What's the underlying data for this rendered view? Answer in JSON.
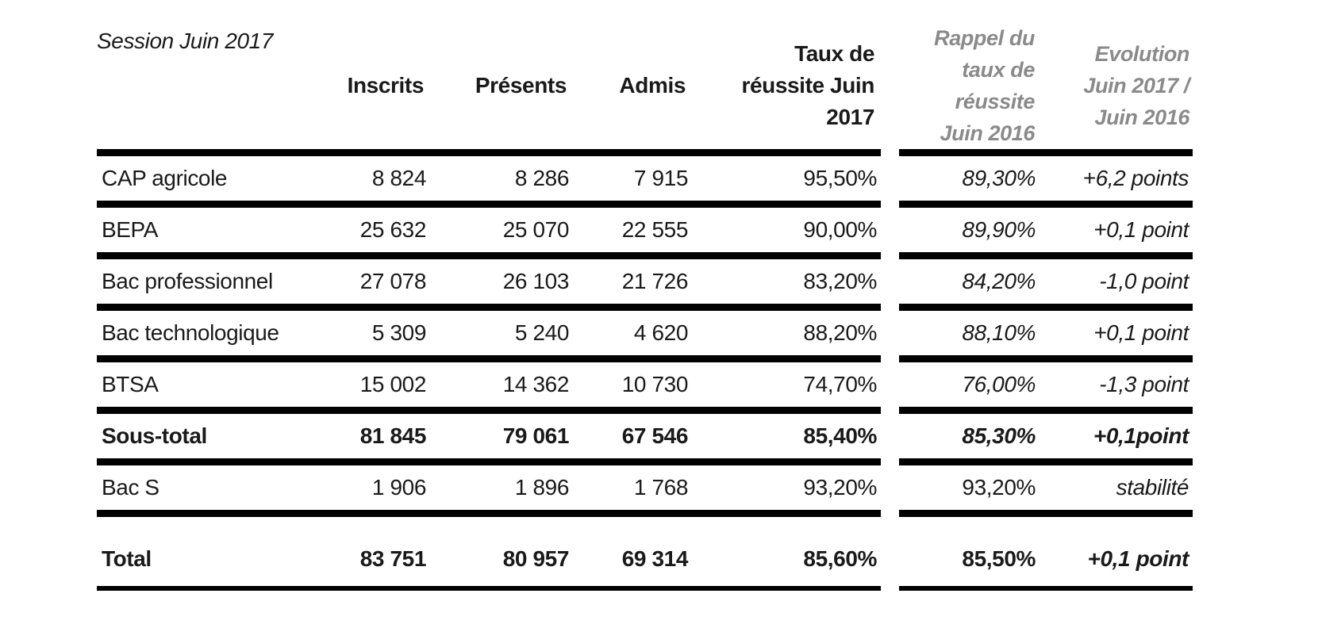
{
  "title": "Session Juin 2017",
  "colors": {
    "text": "#1a1a1a",
    "muted_header_gray": "#8a8a8a",
    "rule_black": "#000000",
    "background": "#ffffff"
  },
  "table": {
    "headers": {
      "inscrits": "Inscrits",
      "presents": "Présents",
      "admis": "Admis",
      "taux_2017": "Taux de\nréussite Juin\n2017",
      "rappel_2016": "Rappel du\ntaux de\nréussite\nJuin 2016",
      "evolution": "Evolution\nJuin 2017 /\nJuin 2016"
    },
    "rows": [
      {
        "label": "CAP agricole",
        "inscrits": "8 824",
        "presents": "8 286",
        "admis": "7 915",
        "taux": "95,50%",
        "rappel": "89,30%",
        "evolution": "+6,2 points",
        "emphasis": false,
        "is_total": false,
        "rappel_italic": true
      },
      {
        "label": "BEPA",
        "inscrits": "25 632",
        "presents": "25 070",
        "admis": "22 555",
        "taux": "90,00%",
        "rappel": "89,90%",
        "evolution": "+0,1 point",
        "emphasis": false,
        "is_total": false,
        "rappel_italic": true
      },
      {
        "label": "Bac professionnel",
        "inscrits": "27 078",
        "presents": "26 103",
        "admis": "21 726",
        "taux": "83,20%",
        "rappel": "84,20%",
        "evolution": "-1,0 point",
        "emphasis": false,
        "is_total": false,
        "rappel_italic": true
      },
      {
        "label": "Bac technologique",
        "inscrits": "5 309",
        "presents": "5 240",
        "admis": "4 620",
        "taux": "88,20%",
        "rappel": "88,10%",
        "evolution": "+0,1 point",
        "emphasis": false,
        "is_total": false,
        "rappel_italic": true
      },
      {
        "label": "BTSA",
        "inscrits": "15 002",
        "presents": "14 362",
        "admis": "10 730",
        "taux": "74,70%",
        "rappel": "76,00%",
        "evolution": "-1,3 point",
        "emphasis": false,
        "is_total": false,
        "rappel_italic": true
      },
      {
        "label": "Sous-total",
        "inscrits": "81 845",
        "presents": "79 061",
        "admis": "67 546",
        "taux": "85,40%",
        "rappel": "85,30%",
        "evolution": "+0,1point",
        "emphasis": true,
        "is_total": false,
        "rappel_italic": true
      },
      {
        "label": "Bac S",
        "inscrits": "1 906",
        "presents": "1 896",
        "admis": "1 768",
        "taux": "93,20%",
        "rappel": "93,20%",
        "evolution": "stabilité",
        "emphasis": false,
        "is_total": false,
        "rappel_italic": false
      },
      {
        "label": "Total",
        "inscrits": "83 751",
        "presents": "80 957",
        "admis": "69 314",
        "taux": "85,60%",
        "rappel": "85,50%",
        "evolution": "+0,1 point",
        "emphasis": true,
        "is_total": true,
        "rappel_italic": false
      }
    ]
  }
}
